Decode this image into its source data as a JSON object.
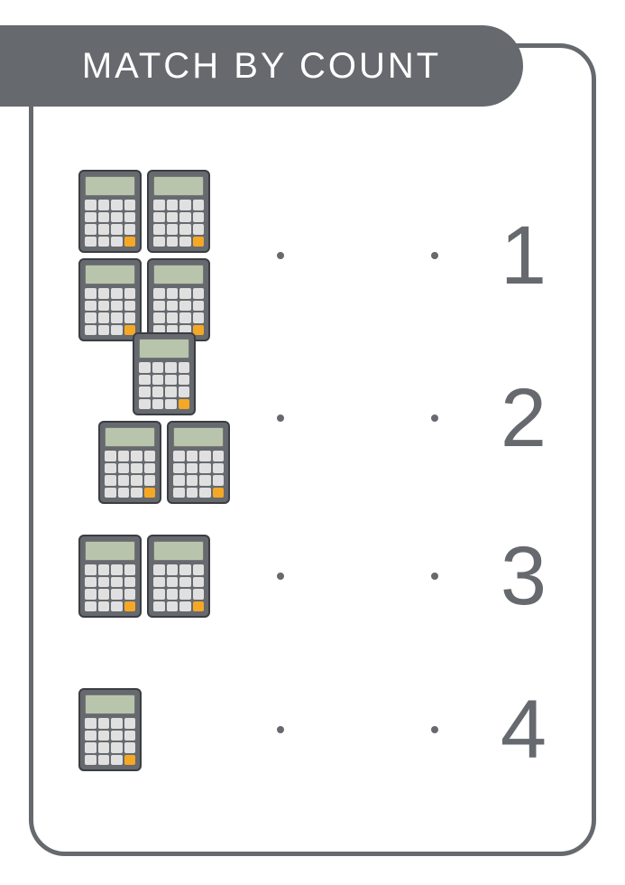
{
  "title": "Match by count",
  "colors": {
    "frame": "#66696e",
    "title_bg": "#66696e",
    "title_text": "#ffffff",
    "dot": "#66696e",
    "number": "#66696e",
    "calc_body": "#66696e",
    "calc_screen": "#b9c4ac",
    "calc_key": "#e0e0e0",
    "calc_key_eq": "#f4a826"
  },
  "rows": [
    {
      "count": 4,
      "layout": "grid",
      "number": "1"
    },
    {
      "count": 3,
      "layout": "tri",
      "number": "2"
    },
    {
      "count": 2,
      "layout": "grid",
      "number": "3"
    },
    {
      "count": 1,
      "layout": "grid",
      "number": "4"
    }
  ],
  "icon": "calculator"
}
